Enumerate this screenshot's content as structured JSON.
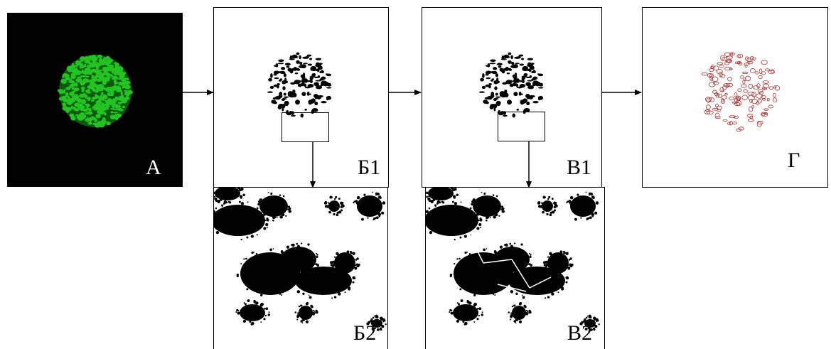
{
  "panels": [
    {
      "label": "А"
    },
    {
      "label": "Б1"
    },
    {
      "label": "В1"
    },
    {
      "label": "Г"
    },
    {
      "label": "Б2"
    },
    {
      "label": "В2"
    }
  ]
}
